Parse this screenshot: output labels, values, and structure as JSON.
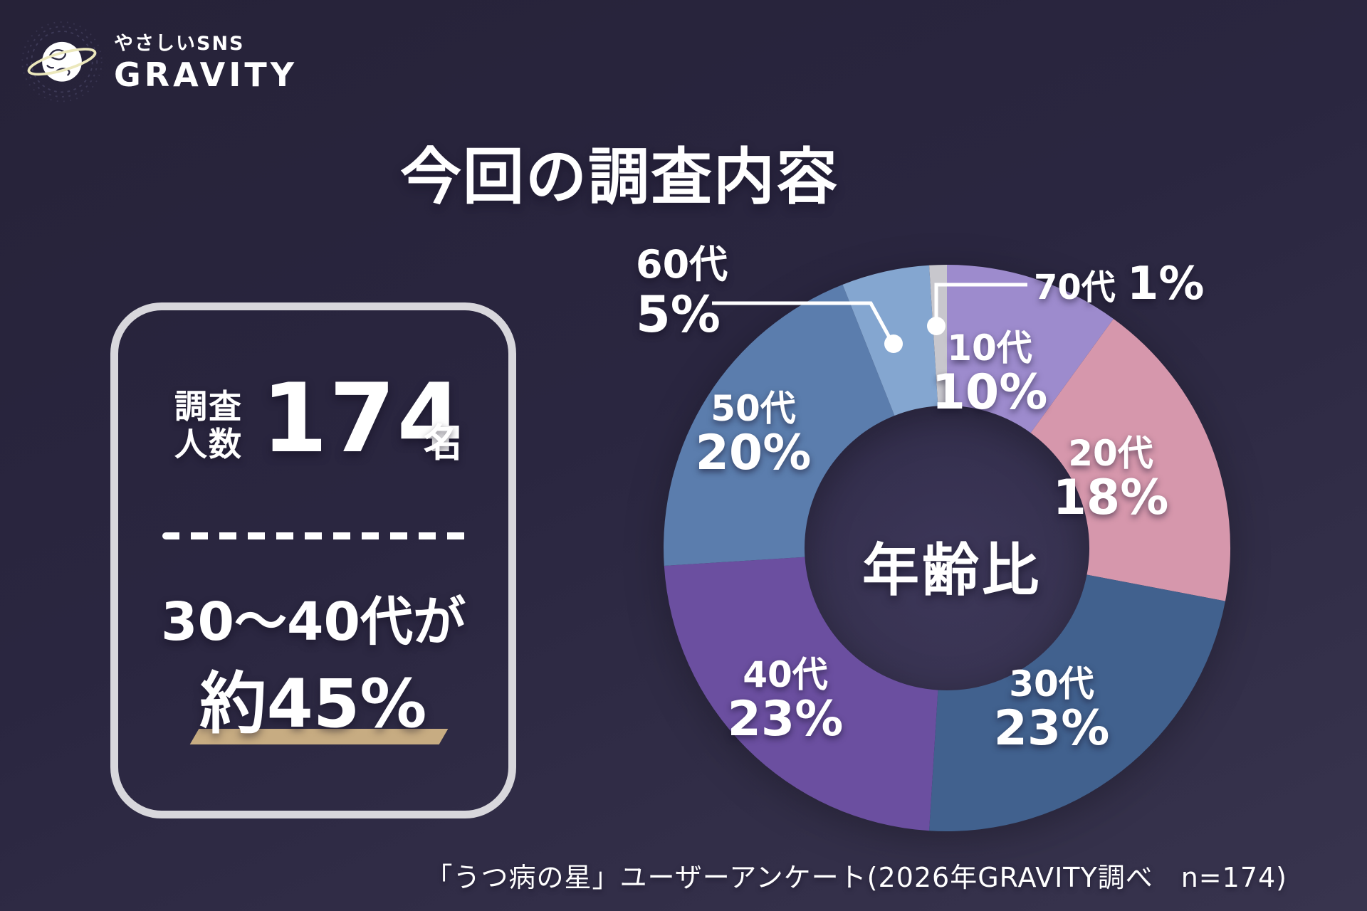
{
  "logo": {
    "tagline": "やさしいSNS",
    "brand": "GRAVITY"
  },
  "title": "今回の調査内容",
  "survey_card": {
    "label_lines": [
      "調査",
      "人数"
    ],
    "count": "174",
    "unit": "名",
    "subtitle": "30〜40代が",
    "subtitle_emphasis": "約45%"
  },
  "chart_data": {
    "type": "pie",
    "subtype": "donut",
    "title": "年齢比",
    "categories": [
      "10代",
      "20代",
      "30代",
      "40代",
      "50代",
      "60代",
      "70代"
    ],
    "values": [
      10,
      18,
      23,
      23,
      20,
      5,
      1
    ],
    "unit": "%",
    "colors": [
      "#9d8bcd",
      "#d697ac",
      "#41618e",
      "#6b4fa0",
      "#5b7dad",
      "#84a6d0",
      "#c8c7cd"
    ],
    "start_angle_deg": 0,
    "direction": "clockwise",
    "legend_position": "labels-on-slices",
    "outside_labeled_categories": [
      "60代",
      "70代"
    ]
  },
  "source_note": "「うつ病の星」ユーザーアンケート(2026年GRAVITY調べ　n=174)",
  "theme": {
    "background_top": "#262238",
    "background_bottom": "#38344e",
    "card_border": "#d8d7dc",
    "text": "#ffffff",
    "highlight_bar": "#c7ac82",
    "leader_line": "#ffffff"
  }
}
